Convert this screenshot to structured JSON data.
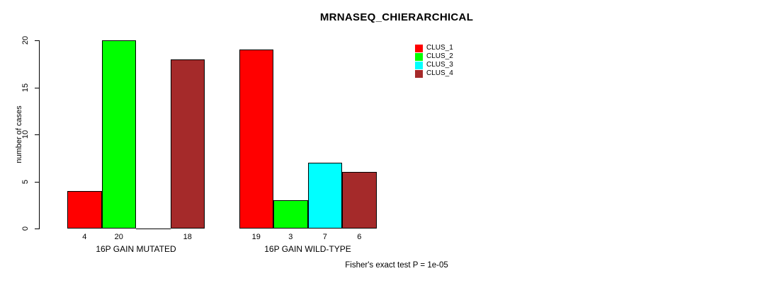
{
  "title": "MRNASEQ_CHIERARCHICAL",
  "ylabel": "number of cases",
  "footer": "Fisher's exact test P = 1e-05",
  "legend": {
    "items": [
      {
        "label": "CLUS_1",
        "color": "#FF0000"
      },
      {
        "label": "CLUS_2",
        "color": "#00FF00"
      },
      {
        "label": "CLUS_3",
        "color": "#00FFFF"
      },
      {
        "label": "CLUS_4",
        "color": "#A52A2A"
      }
    ]
  },
  "chart_data": {
    "type": "bar",
    "title": "MRNASEQ_CHIERARCHICAL",
    "xlabel": "",
    "ylabel": "number of cases",
    "categories": [
      "16P GAIN MUTATED",
      "16P GAIN WILD-TYPE"
    ],
    "series": [
      {
        "name": "CLUS_1",
        "color": "#FF0000",
        "values": [
          4,
          19
        ]
      },
      {
        "name": "CLUS_2",
        "color": "#00FF00",
        "values": [
          20,
          3
        ]
      },
      {
        "name": "CLUS_3",
        "color": "#00FFFF",
        "values": [
          0,
          7
        ]
      },
      {
        "name": "CLUS_4",
        "color": "#A52A2A",
        "values": [
          18,
          6
        ]
      }
    ],
    "bar_value_labels": [
      [
        "4",
        "20",
        "",
        "18"
      ],
      [
        "19",
        "3",
        "7",
        "6"
      ]
    ],
    "yticks": [
      0,
      5,
      10,
      15,
      20
    ],
    "ylim": [
      0,
      20
    ],
    "grid": false,
    "legend_position": "top-right",
    "annotation": "Fisher's exact test P = 1e-05"
  }
}
